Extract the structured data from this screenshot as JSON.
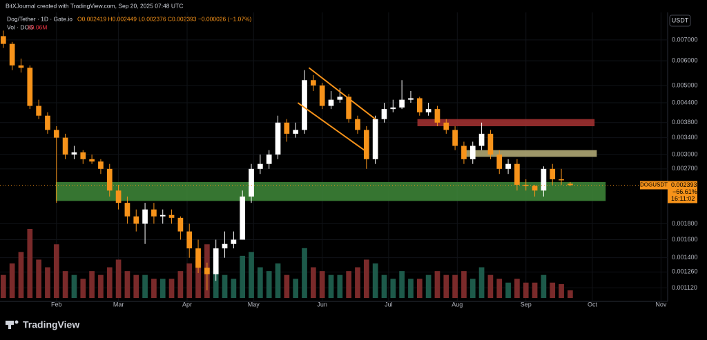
{
  "header": {
    "credit": "BitXJournal created with TradingView.com, Sep 20, 2025 07:48 UTC",
    "symbol": "Dog/Tether · 1D · Gate.io",
    "ohlc": "O0.002419 H0.002449 L0.002376 C0.002393 −0.000026 (−1.07%)",
    "volume_label": "Vol · DOG",
    "volume_value": "99.06M",
    "currency_button": "USDT",
    "logo": "TradingView"
  },
  "chart_data": {
    "type": "candlestick",
    "log_scale": true,
    "up_color": "#ffffff",
    "down_color": "#f7931a",
    "volume_up_color": "#1d5a4a",
    "volume_down_color": "#7a2a2a",
    "x": [
      7,
      11,
      15,
      19,
      23,
      27,
      31,
      35,
      39,
      43,
      47,
      51,
      55,
      59,
      63,
      67,
      71,
      75,
      79,
      83,
      87,
      91,
      95,
      99,
      103,
      107,
      111,
      115,
      119,
      123,
      127,
      131,
      135,
      139,
      143,
      147,
      151,
      155,
      159,
      163,
      167,
      171,
      175,
      179,
      183,
      187,
      191,
      195,
      199,
      203,
      207,
      211,
      215,
      219,
      223,
      227,
      231,
      235,
      239,
      243,
      247,
      251,
      255,
      259,
      263
    ],
    "open": [
      0.0072,
      0.0068,
      0.0058,
      0.0057,
      0.0043,
      0.004,
      0.0036,
      0.0034,
      0.003,
      0.00305,
      0.0029,
      0.00285,
      0.0027,
      0.0023,
      0.0021,
      0.0019,
      0.0018,
      0.002,
      0.0019,
      0.00192,
      0.00188,
      0.0017,
      0.0015,
      0.0013,
      0.00124,
      0.0015,
      0.00155,
      0.0016,
      0.0022,
      0.0027,
      0.0028,
      0.003,
      0.0038,
      0.0035,
      0.0036,
      0.0052,
      0.005,
      0.0043,
      0.0045,
      0.0046,
      0.0039,
      0.0036,
      0.0029,
      0.0039,
      0.0042,
      0.00425,
      0.0045,
      0.00455,
      0.0041,
      0.0042,
      0.0038,
      0.0036,
      0.0032,
      0.0029,
      0.0032,
      0.0035,
      0.003,
      0.0027,
      0.0028,
      0.0024,
      0.00238,
      0.0023,
      0.0027,
      0.0025,
      0.002419
    ],
    "high": [
      0.0075,
      0.0069,
      0.0061,
      0.0058,
      0.0045,
      0.0041,
      0.0037,
      0.0035,
      0.0032,
      0.0031,
      0.003,
      0.0029,
      0.0028,
      0.0024,
      0.0022,
      0.002,
      0.0021,
      0.0021,
      0.002,
      0.002,
      0.0019,
      0.0018,
      0.0016,
      0.00135,
      0.0016,
      0.0017,
      0.0017,
      0.0023,
      0.0028,
      0.003,
      0.0031,
      0.004,
      0.0039,
      0.0038,
      0.0056,
      0.0054,
      0.0051,
      0.0048,
      0.0049,
      0.0047,
      0.004,
      0.0037,
      0.004,
      0.0044,
      0.0045,
      0.0052,
      0.0048,
      0.0046,
      0.0044,
      0.0043,
      0.0039,
      0.0037,
      0.0033,
      0.0033,
      0.0038,
      0.0036,
      0.0031,
      0.0029,
      0.0029,
      0.0025,
      0.0024,
      0.00275,
      0.0028,
      0.0027,
      0.002449
    ],
    "low": [
      0.0066,
      0.0056,
      0.0055,
      0.0042,
      0.0039,
      0.0035,
      0.0021,
      0.0029,
      0.0029,
      0.0028,
      0.0028,
      0.0026,
      0.0022,
      0.002,
      0.0018,
      0.0017,
      0.00155,
      0.0018,
      0.0018,
      0.0018,
      0.0016,
      0.0014,
      0.00125,
      0.0011,
      0.00118,
      0.0014,
      0.0015,
      0.0016,
      0.0021,
      0.0026,
      0.0027,
      0.0029,
      0.0033,
      0.0034,
      0.0035,
      0.0048,
      0.0042,
      0.0042,
      0.0044,
      0.0038,
      0.0035,
      0.0027,
      0.0028,
      0.0038,
      0.0041,
      0.0042,
      0.0044,
      0.004,
      0.004,
      0.0037,
      0.0035,
      0.0031,
      0.0028,
      0.0028,
      0.0031,
      0.0029,
      0.0026,
      0.0026,
      0.0023,
      0.0023,
      0.0022,
      0.0022,
      0.0024,
      0.0024,
      0.002376
    ],
    "close": [
      0.0068,
      0.0058,
      0.0057,
      0.0043,
      0.004,
      0.0036,
      0.0034,
      0.003,
      0.00305,
      0.0029,
      0.00285,
      0.0027,
      0.0023,
      0.0021,
      0.0019,
      0.0018,
      0.002,
      0.0019,
      0.00192,
      0.00188,
      0.0017,
      0.0015,
      0.0013,
      0.00124,
      0.0015,
      0.00155,
      0.0016,
      0.0022,
      0.0027,
      0.0028,
      0.003,
      0.0038,
      0.0035,
      0.0036,
      0.0052,
      0.005,
      0.0043,
      0.0045,
      0.0046,
      0.0039,
      0.0036,
      0.0029,
      0.0039,
      0.0042,
      0.00425,
      0.0045,
      0.00455,
      0.0041,
      0.0042,
      0.0038,
      0.0036,
      0.0032,
      0.0029,
      0.0032,
      0.0035,
      0.003,
      0.0027,
      0.0028,
      0.0024,
      0.00238,
      0.0023,
      0.0027,
      0.0025,
      0.00248,
      0.002393
    ],
    "volume": [
      300,
      450,
      600,
      900,
      500,
      400,
      700,
      350,
      300,
      250,
      350,
      300,
      400,
      500,
      350,
      300,
      300,
      250,
      250,
      250,
      350,
      450,
      500,
      700,
      400,
      300,
      250,
      550,
      600,
      400,
      350,
      450,
      300,
      250,
      650,
      400,
      350,
      300,
      300,
      350,
      400,
      500,
      450,
      300,
      250,
      350,
      250,
      250,
      300,
      350,
      300,
      300,
      350,
      250,
      400,
      300,
      250,
      200,
      250,
      200,
      200,
      300,
      200,
      180,
      99.06
    ],
    "xlim": [
      5.5,
      307
    ],
    "ylim": [
      0.00104,
      0.00767
    ],
    "xticks": [
      {
        "value": 31,
        "label": "Feb"
      },
      {
        "value": 59,
        "label": "Mar"
      },
      {
        "value": 90,
        "label": "Apr"
      },
      {
        "value": 120,
        "label": "May"
      },
      {
        "value": 151,
        "label": "Jun"
      },
      {
        "value": 181,
        "label": "Jul"
      },
      {
        "value": 212,
        "label": "Aug"
      },
      {
        "value": 243,
        "label": "Sep"
      },
      {
        "value": 273,
        "label": "Oct"
      },
      {
        "value": 304,
        "label": "Nov"
      }
    ],
    "yticks": [
      {
        "value": 0.007,
        "label": "0.007000"
      },
      {
        "value": 0.006,
        "label": "0.006000"
      },
      {
        "value": 0.005,
        "label": "0.005000"
      },
      {
        "value": 0.0044,
        "label": "0.004400"
      },
      {
        "value": 0.0038,
        "label": "0.003800"
      },
      {
        "value": 0.0034,
        "label": "0.003400"
      },
      {
        "value": 0.003,
        "label": "0.003000"
      },
      {
        "value": 0.0027,
        "label": "0.002700"
      },
      {
        "value": 0.0018,
        "label": "0.001800"
      },
      {
        "value": 0.0016,
        "label": "0.001600"
      },
      {
        "value": 0.0014,
        "label": "0.001400"
      },
      {
        "value": 0.00126,
        "label": "0.001260"
      },
      {
        "value": 0.00112,
        "label": "0.001120"
      }
    ],
    "zones": [
      {
        "color": "#3f8a3a",
        "x0": 30.7,
        "x1": 279,
        "low": 0.00213,
        "high": 0.00245
      },
      {
        "color": "#a83232",
        "x0": 194,
        "x1": 274,
        "low": 0.0037,
        "high": 0.0039
      },
      {
        "color": "#b8b07a",
        "x0": 216,
        "x1": 275,
        "low": 0.00295,
        "high": 0.0031
      }
    ],
    "trendlines": [
      {
        "color": "#f7931a",
        "x": [
          145,
          175
        ],
        "y": [
          0.0057,
          0.0039
        ]
      },
      {
        "color": "#f7931a",
        "x": [
          140,
          170
        ],
        "y": [
          0.0044,
          0.0031
        ]
      }
    ],
    "last_price": {
      "value": 0.002393,
      "label": "0.002393",
      "symbol": "DOGUSDT",
      "change": "−66.61%",
      "countdown": "16:11:02",
      "color": "#f7931a"
    }
  }
}
